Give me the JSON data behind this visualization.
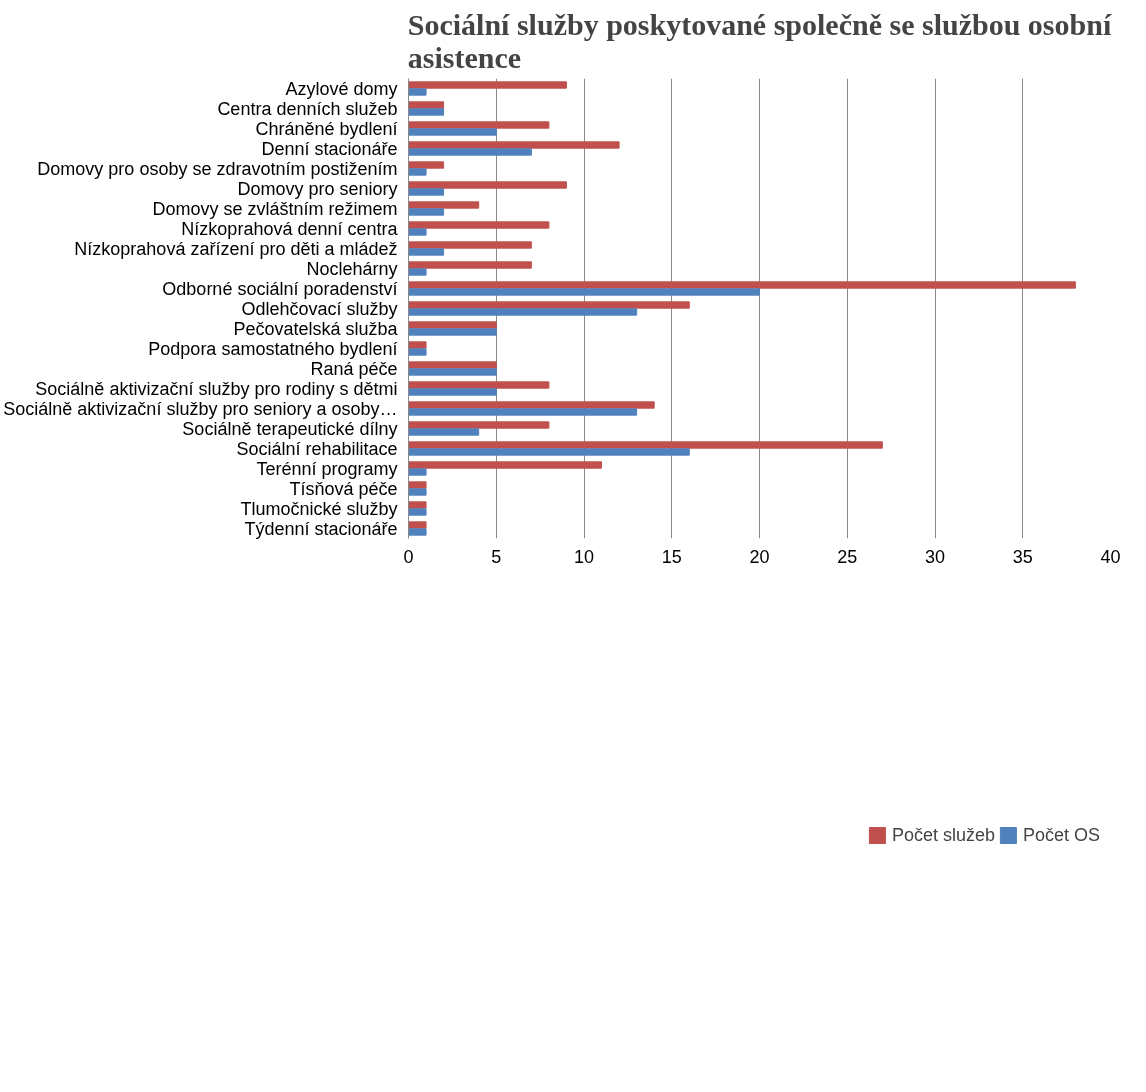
{
  "chart_data": {
    "type": "bar",
    "orientation": "horizontal",
    "title": "Sociální služby poskytované společně se službou osobní asistence",
    "categories": [
      "Azylové domy",
      "Centra denních služeb",
      "Chráněné bydlení",
      "Denní stacionáře",
      "Domovy pro osoby se zdravotním postižením",
      "Domovy pro seniory",
      "Domovy se zvláštním režimem",
      "Nízkoprahová denní centra",
      "Nízkoprahová zařízení pro děti a mládež",
      "Noclehárny",
      "Odborné sociální poradenství",
      "Odlehčovací služby",
      "Pečovatelská služba",
      "Podpora samostatného bydlení",
      "Raná péče",
      "Sociálně aktivizační služby pro rodiny s dětmi",
      "Sociálně aktivizační služby pro seniory a osoby…",
      "Sociálně terapeutické dílny",
      "Sociální rehabilitace",
      "Terénní programy",
      "Tísňová péče",
      "Tlumočnické služby",
      "Týdenní stacionáře"
    ],
    "series": [
      {
        "name": "Počet služeb",
        "color": "#c0504d",
        "values": [
          9,
          2,
          8,
          12,
          2,
          9,
          4,
          8,
          7,
          7,
          38,
          16,
          5,
          1,
          5,
          8,
          14,
          8,
          27,
          11,
          1,
          1,
          1
        ]
      },
      {
        "name": "Počet OS",
        "color": "#4f81bd",
        "values": [
          1,
          2,
          5,
          7,
          1,
          2,
          2,
          1,
          2,
          1,
          20,
          13,
          5,
          1,
          5,
          5,
          13,
          4,
          16,
          1,
          1,
          1,
          1
        ]
      }
    ],
    "xlim": [
      0,
      40
    ],
    "xticks": [
      0,
      5,
      10,
      15,
      20,
      25,
      30,
      35,
      40
    ],
    "grid": "x",
    "legend": "bottom"
  }
}
